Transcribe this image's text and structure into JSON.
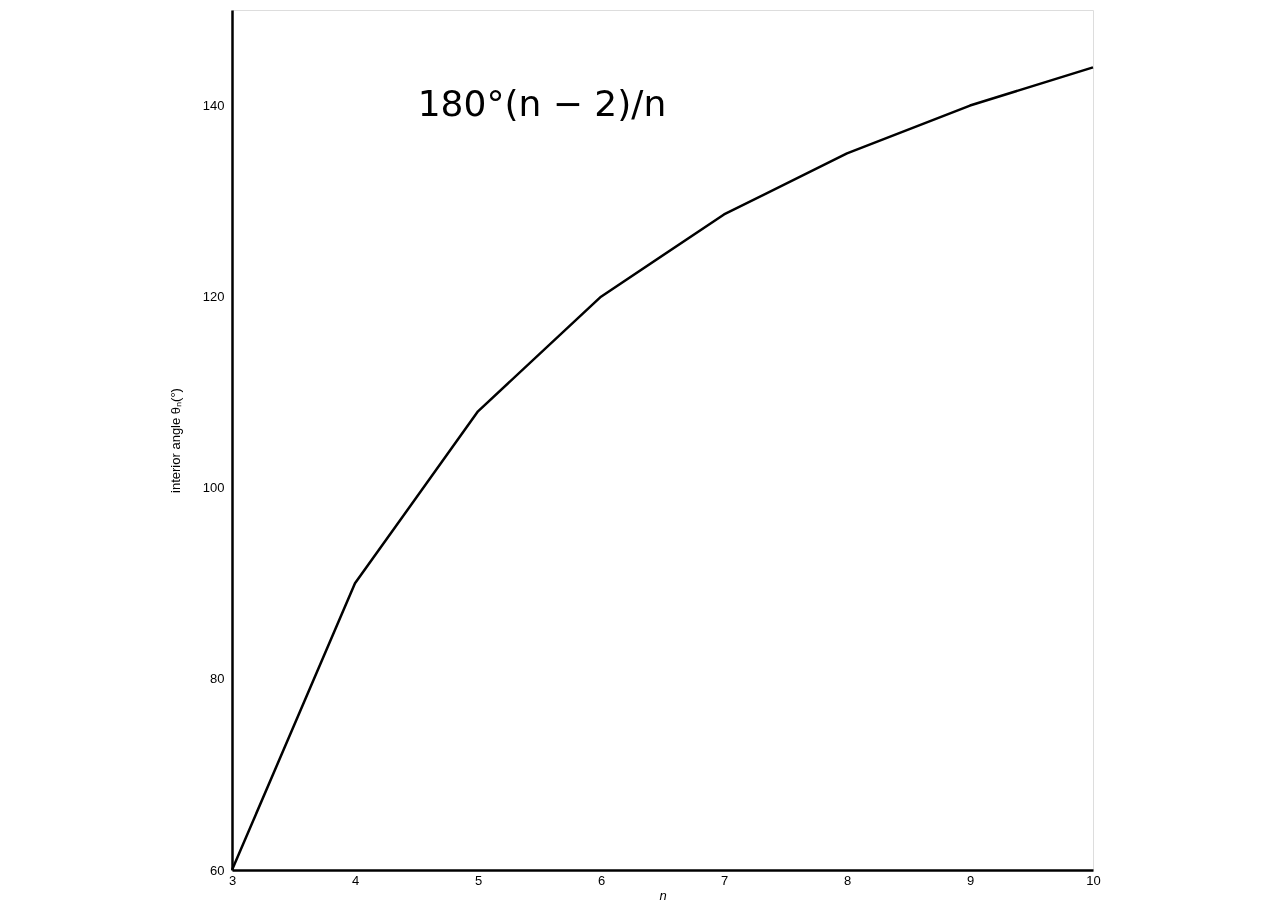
{
  "chart_data": {
    "type": "line",
    "x": [
      3,
      4,
      5,
      6,
      7,
      8,
      9,
      10
    ],
    "series": [
      {
        "color": "#000000",
        "values": [
          60,
          90,
          108,
          120,
          128.6,
          135,
          140,
          144
        ]
      }
    ],
    "xlim": [
      3,
      10
    ],
    "xticks": [
      3,
      4,
      5,
      6,
      7,
      8,
      9,
      10
    ],
    "ylim": [
      60,
      150
    ],
    "yticks": [
      60,
      80,
      100,
      120,
      140
    ],
    "xlabel": "n",
    "ylabel": "interior angle θₙ(°)",
    "annotations": [
      "180°(n − 2)/n"
    ],
    "grid": false,
    "marker": "none",
    "line_style": "solid"
  }
}
